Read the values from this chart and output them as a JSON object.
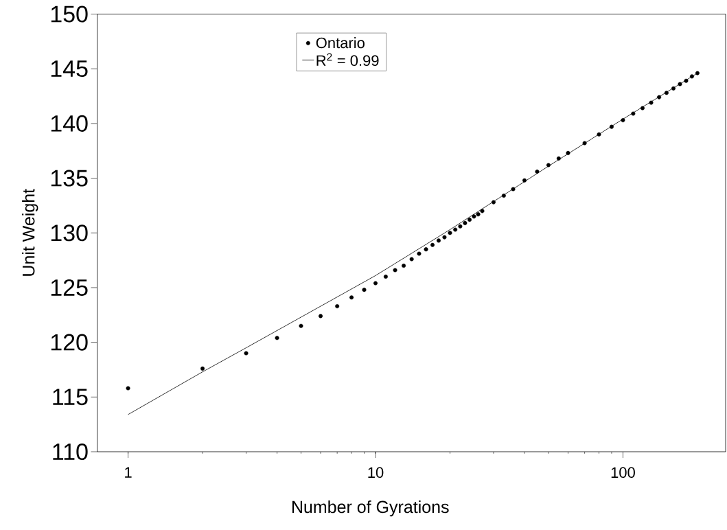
{
  "chart_data": {
    "type": "scatter",
    "xlabel": "Number of Gyrations",
    "ylabel": "Unit Weight",
    "log": "x",
    "xlim": [
      0.75,
      260
    ],
    "xticks": [
      1,
      10,
      100
    ],
    "ylim": [
      110,
      150
    ],
    "yticks": [
      110,
      115,
      120,
      125,
      130,
      135,
      140,
      145,
      150
    ],
    "legend": "top",
    "grid": false,
    "series": [
      {
        "name": "Ontario",
        "marker": "circle",
        "color": "#000000",
        "x": [
          1,
          2,
          3,
          4,
          5,
          6,
          7,
          8,
          9,
          10,
          11,
          12,
          13,
          14,
          15,
          16,
          17,
          18,
          19,
          20,
          21,
          22,
          23,
          24,
          25,
          26,
          27,
          30,
          33,
          36,
          40,
          45,
          50,
          55,
          60,
          70,
          80,
          90,
          100,
          110,
          120,
          130,
          140,
          150,
          160,
          170,
          180,
          190,
          200
        ],
        "values": [
          115.8,
          117.6,
          119.0,
          120.4,
          121.5,
          122.4,
          123.3,
          124.1,
          124.8,
          125.4,
          126.0,
          126.6,
          127.0,
          127.6,
          128.1,
          128.5,
          128.9,
          129.3,
          129.6,
          130.0,
          130.3,
          130.6,
          130.9,
          131.2,
          131.5,
          131.7,
          132.0,
          132.8,
          133.4,
          134.0,
          134.8,
          135.6,
          136.2,
          136.8,
          137.3,
          138.2,
          139.0,
          139.7,
          140.3,
          140.9,
          141.4,
          141.9,
          142.4,
          142.8,
          143.2,
          143.6,
          143.9,
          144.3,
          144.6
        ]
      },
      {
        "name": "R$^{2}$ = 0.99",
        "type": "line",
        "marker": "none",
        "line_style": "solid",
        "color": "#000000",
        "x": [
          1,
          2,
          3,
          5,
          10,
          20,
          50,
          100,
          200
        ],
        "values": [
          113.4,
          117.3,
          119.5,
          122.3,
          126.1,
          130.3,
          136.1,
          140.4,
          144.6
        ]
      }
    ]
  }
}
